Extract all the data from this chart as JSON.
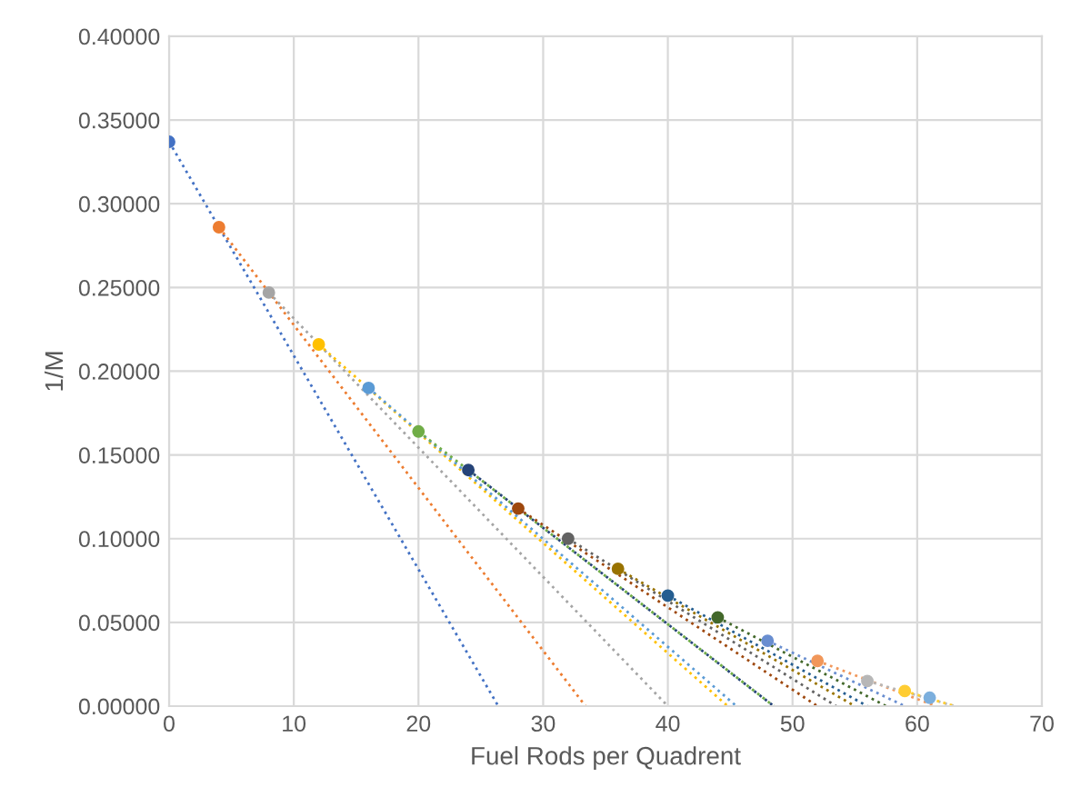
{
  "chart_data": {
    "type": "scatter",
    "xlabel": "Fuel Rods per Quadrent",
    "ylabel": "1/M",
    "xlim": [
      0,
      70
    ],
    "xticks": [
      0,
      10,
      20,
      30,
      40,
      50,
      60,
      70
    ],
    "ylim": [
      0,
      0.4
    ],
    "yticks": [
      {
        "value": 0,
        "label": "0.00000"
      },
      {
        "value": 0.05,
        "label": "0.05000"
      },
      {
        "value": 0.1,
        "label": "0.10000"
      },
      {
        "value": 0.15,
        "label": "0.15000"
      },
      {
        "value": 0.2,
        "label": "0.20000"
      },
      {
        "value": 0.25,
        "label": "0.25000"
      },
      {
        "value": 0.3,
        "label": "0.30000"
      },
      {
        "value": 0.35,
        "label": "0.35000"
      },
      {
        "value": 0.4,
        "label": "0.40000"
      }
    ],
    "grid": true,
    "legend": false,
    "series": [
      {
        "type": "line",
        "line_style": "dotted",
        "marker": "none",
        "color": "#4472c4",
        "x": [
          0,
          26.4
        ],
        "values": [
          0.337,
          0
        ]
      },
      {
        "type": "line",
        "line_style": "dotted",
        "marker": "none",
        "color": "#ed7d31",
        "x": [
          4,
          33.4
        ],
        "values": [
          0.286,
          0
        ]
      },
      {
        "type": "line",
        "line_style": "dotted",
        "marker": "none",
        "color": "#a5a5a5",
        "x": [
          8,
          40
        ],
        "values": [
          0.247,
          0
        ]
      },
      {
        "type": "line",
        "line_style": "dotted",
        "marker": "none",
        "color": "#ffc000",
        "x": [
          12,
          44.8
        ],
        "values": [
          0.216,
          0
        ]
      },
      {
        "type": "line",
        "line_style": "dotted",
        "marker": "none",
        "color": "#5b9bd5",
        "x": [
          16,
          45.5
        ],
        "values": [
          0.19,
          0
        ]
      },
      {
        "type": "line",
        "line_style": "dotted",
        "marker": "none",
        "color": "#70ad47",
        "x": [
          20,
          48.5
        ],
        "values": [
          0.164,
          0
        ]
      },
      {
        "type": "line",
        "line_style": "dotted",
        "marker": "none",
        "color": "#264478",
        "x": [
          24,
          48.5
        ],
        "values": [
          0.141,
          0
        ]
      },
      {
        "type": "line",
        "line_style": "dotted",
        "marker": "none",
        "color": "#9e480e",
        "x": [
          28,
          52
        ],
        "values": [
          0.118,
          0
        ]
      },
      {
        "type": "line",
        "line_style": "dotted",
        "marker": "none",
        "color": "#636363",
        "x": [
          32,
          53.5
        ],
        "values": [
          0.1,
          0
        ]
      },
      {
        "type": "line",
        "line_style": "dotted",
        "marker": "none",
        "color": "#997300",
        "x": [
          36,
          55
        ],
        "values": [
          0.082,
          0
        ]
      },
      {
        "type": "line",
        "line_style": "dotted",
        "marker": "none",
        "color": "#255e91",
        "x": [
          40,
          56
        ],
        "values": [
          0.066,
          0
        ]
      },
      {
        "type": "line",
        "line_style": "dotted",
        "marker": "none",
        "color": "#43682b",
        "x": [
          44,
          57.5
        ],
        "values": [
          0.053,
          0
        ]
      },
      {
        "type": "line",
        "line_style": "dotted",
        "marker": "none",
        "color": "#698ed0",
        "x": [
          48,
          59
        ],
        "values": [
          0.039,
          0
        ]
      },
      {
        "type": "line",
        "line_style": "dotted",
        "marker": "none",
        "color": "#f1975a",
        "x": [
          52,
          61.5
        ],
        "values": [
          0.027,
          0
        ]
      },
      {
        "type": "line",
        "line_style": "dotted",
        "marker": "none",
        "color": "#b7b7b7",
        "x": [
          56,
          63
        ],
        "values": [
          0.015,
          0
        ]
      },
      {
        "type": "line",
        "line_style": "dotted",
        "marker": "none",
        "color": "#ffcd33",
        "x": [
          59,
          63
        ],
        "values": [
          0.009,
          0
        ]
      },
      {
        "marker": "circle",
        "x": [
          0,
          4,
          8,
          12,
          16,
          20,
          24,
          28,
          32,
          36,
          40,
          44,
          48,
          52,
          56,
          59,
          61
        ],
        "values": [
          0.337,
          0.286,
          0.247,
          0.216,
          0.19,
          0.164,
          0.141,
          0.118,
          0.1,
          0.082,
          0.066,
          0.053,
          0.039,
          0.027,
          0.015,
          0.009,
          0.005
        ],
        "colors": [
          "#4472c4",
          "#ed7d31",
          "#a5a5a5",
          "#ffc000",
          "#5b9bd5",
          "#70ad47",
          "#264478",
          "#9e480e",
          "#636363",
          "#997300",
          "#255e91",
          "#43682b",
          "#698ed0",
          "#f1975a",
          "#b7b7b7",
          "#ffcd33",
          "#7cafdd"
        ]
      }
    ]
  }
}
